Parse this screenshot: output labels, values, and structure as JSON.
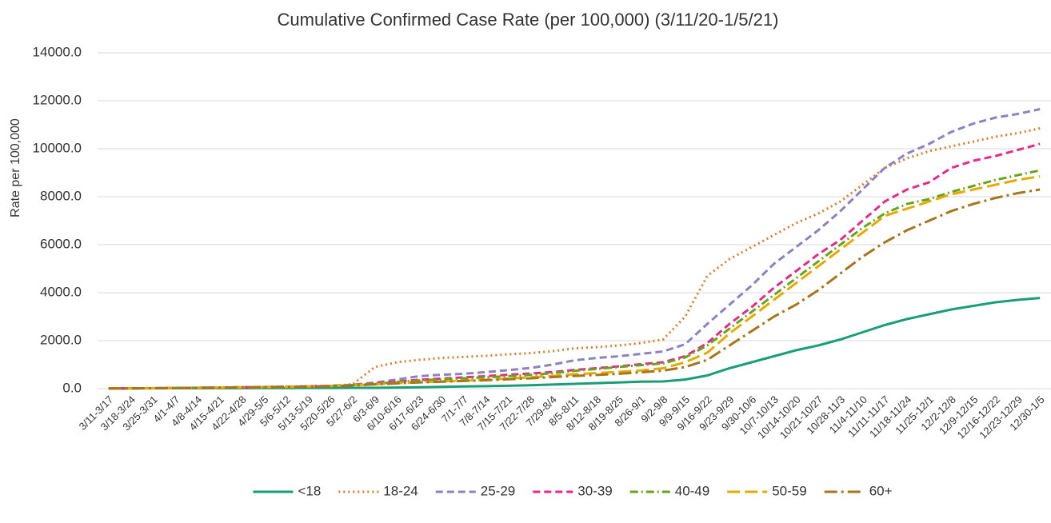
{
  "chart_data": {
    "type": "line",
    "title": "Cumulative Confirmed Case Rate (per 100,000) (3/11/20-1/5/21)",
    "y_label": "Rate per 100,000",
    "categories": [
      "3/11-3/17",
      "3/18-3/24",
      "3/25-3/31",
      "4/1-4/7",
      "4/8-4/14",
      "4/15-4/21",
      "4/22-4/28",
      "4/29-5/5",
      "5/6-5/12",
      "5/13-5/19",
      "5/20-5/26",
      "5/27-6/2",
      "6/3-6/9",
      "6/10-6/16",
      "6/17-6/23",
      "6/24-6/30",
      "7/1-7/7",
      "7/8-7/14",
      "7/15-7/21",
      "7/22-7/28",
      "7/29-8/4",
      "8/5-8/11",
      "8/12-8/18",
      "8/19-8/25",
      "8/26-9/1",
      "9/2-9/8",
      "9/9-9/15",
      "9/16-9/22",
      "9/23-9/29",
      "9/30-10/6",
      "10/7-10/13",
      "10/14-10/20",
      "10/21-10/27",
      "10/28-11/3",
      "11/4-11/10",
      "11/11-11/17",
      "11/18-11/24",
      "11/25-12/1",
      "12/2-12/8",
      "12/9-12/15",
      "12/16-12/22",
      "12/23-12/29",
      "12/30-1/5"
    ],
    "series": [
      {
        "name": "<18",
        "color": "#1a9e77",
        "dash": "solid",
        "values": [
          5,
          8,
          12,
          15,
          18,
          20,
          22,
          24,
          26,
          28,
          30,
          32,
          35,
          45,
          60,
          75,
          90,
          105,
          120,
          140,
          170,
          200,
          230,
          260,
          290,
          300,
          380,
          550,
          850,
          1100,
          1350,
          1600,
          1800,
          2050,
          2350,
          2650,
          2900,
          3100,
          3300,
          3450,
          3600,
          3700,
          3780
        ]
      },
      {
        "name": "18-24",
        "color": "#e07b2a",
        "dash": "dotted",
        "values": [
          10,
          15,
          20,
          30,
          40,
          50,
          60,
          70,
          80,
          100,
          120,
          180,
          900,
          1100,
          1200,
          1280,
          1320,
          1370,
          1430,
          1480,
          1560,
          1680,
          1730,
          1800,
          1900,
          2050,
          3000,
          4700,
          5400,
          5900,
          6400,
          6900,
          7300,
          7800,
          8500,
          9200,
          9600,
          9900,
          10100,
          10300,
          10500,
          10650,
          10850
        ]
      },
      {
        "name": "25-29",
        "color": "#8c82c3",
        "dash": "dashed",
        "values": [
          10,
          15,
          20,
          30,
          40,
          50,
          60,
          70,
          80,
          100,
          120,
          160,
          250,
          380,
          520,
          580,
          620,
          690,
          770,
          860,
          1000,
          1180,
          1280,
          1350,
          1450,
          1550,
          1850,
          2700,
          3500,
          4300,
          5200,
          5900,
          6600,
          7400,
          8300,
          9200,
          9800,
          10200,
          10700,
          11050,
          11300,
          11450,
          11650
        ]
      },
      {
        "name": "30-39",
        "color": "#e7298a",
        "dash": "dashed",
        "values": [
          8,
          12,
          18,
          25,
          35,
          45,
          55,
          65,
          75,
          90,
          110,
          150,
          220,
          300,
          370,
          420,
          470,
          520,
          580,
          630,
          690,
          780,
          850,
          930,
          1020,
          1100,
          1350,
          1900,
          2700,
          3400,
          4200,
          4900,
          5600,
          6200,
          7000,
          7800,
          8300,
          8600,
          9200,
          9500,
          9700,
          9950,
          10200
        ]
      },
      {
        "name": "40-49",
        "color": "#66a61e",
        "dash": "dashdot",
        "values": [
          8,
          12,
          18,
          25,
          35,
          45,
          55,
          65,
          75,
          90,
          110,
          150,
          200,
          280,
          340,
          390,
          430,
          470,
          520,
          570,
          640,
          740,
          820,
          900,
          980,
          1050,
          1300,
          1800,
          2500,
          3200,
          3900,
          4600,
          5300,
          6000,
          6700,
          7300,
          7700,
          7900,
          8200,
          8450,
          8700,
          8900,
          9100
        ]
      },
      {
        "name": "50-59",
        "color": "#e6ab02",
        "dash": "longdash",
        "values": [
          8,
          12,
          18,
          25,
          35,
          45,
          55,
          65,
          75,
          90,
          110,
          140,
          180,
          230,
          270,
          300,
          330,
          370,
          420,
          470,
          530,
          600,
          650,
          700,
          760,
          850,
          1100,
          1500,
          2300,
          3000,
          3700,
          4400,
          5100,
          5800,
          6500,
          7200,
          7500,
          7800,
          8100,
          8300,
          8500,
          8700,
          8850
        ]
      },
      {
        "name": "60+",
        "color": "#a6761d",
        "dash": "longdashdot",
        "values": [
          8,
          12,
          18,
          25,
          35,
          45,
          55,
          65,
          75,
          85,
          100,
          130,
          180,
          220,
          260,
          290,
          320,
          350,
          390,
          430,
          480,
          530,
          570,
          620,
          680,
          750,
          900,
          1200,
          1800,
          2400,
          3000,
          3500,
          4100,
          4800,
          5500,
          6100,
          6600,
          7000,
          7400,
          7700,
          7950,
          8150,
          8300
        ]
      }
    ],
    "ylim": [
      0,
      14000
    ],
    "yticks": [
      {
        "value": 0,
        "label": "0.0"
      },
      {
        "value": 2000,
        "label": "2000.0"
      },
      {
        "value": 4000,
        "label": "4000.0"
      },
      {
        "value": 6000,
        "label": "6000.0"
      },
      {
        "value": 8000,
        "label": "8000.0"
      },
      {
        "value": 10000,
        "label": "10000.0"
      },
      {
        "value": 12000,
        "label": "12000.0"
      },
      {
        "value": 14000,
        "label": "14000.0"
      }
    ],
    "grid": true
  }
}
